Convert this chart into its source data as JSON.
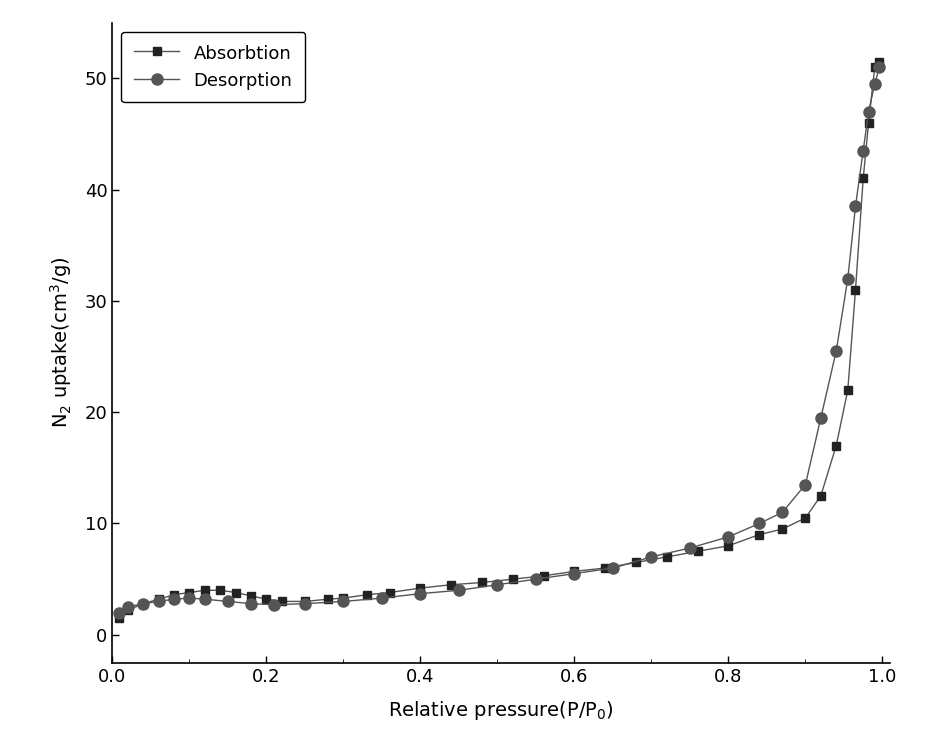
{
  "absorption_x": [
    0.008,
    0.02,
    0.04,
    0.06,
    0.08,
    0.1,
    0.12,
    0.14,
    0.16,
    0.18,
    0.2,
    0.22,
    0.25,
    0.28,
    0.3,
    0.33,
    0.36,
    0.4,
    0.44,
    0.48,
    0.52,
    0.56,
    0.6,
    0.64,
    0.68,
    0.72,
    0.76,
    0.8,
    0.84,
    0.87,
    0.9,
    0.92,
    0.94,
    0.955,
    0.965,
    0.975,
    0.982,
    0.99,
    0.996
  ],
  "absorption_y": [
    1.5,
    2.2,
    2.8,
    3.2,
    3.6,
    3.8,
    4.0,
    4.0,
    3.8,
    3.5,
    3.2,
    3.0,
    3.0,
    3.2,
    3.3,
    3.6,
    3.8,
    4.2,
    4.5,
    4.7,
    5.0,
    5.3,
    5.7,
    6.0,
    6.5,
    7.0,
    7.5,
    8.0,
    9.0,
    9.5,
    10.5,
    12.5,
    17.0,
    22.0,
    31.0,
    41.0,
    46.0,
    51.0,
    51.5
  ],
  "desorption_x": [
    0.008,
    0.02,
    0.04,
    0.06,
    0.08,
    0.1,
    0.12,
    0.15,
    0.18,
    0.21,
    0.25,
    0.3,
    0.35,
    0.4,
    0.45,
    0.5,
    0.55,
    0.6,
    0.65,
    0.7,
    0.75,
    0.8,
    0.84,
    0.87,
    0.9,
    0.92,
    0.94,
    0.955,
    0.965,
    0.975,
    0.982,
    0.99,
    0.996
  ],
  "desorption_y": [
    2.0,
    2.5,
    2.8,
    3.0,
    3.2,
    3.3,
    3.2,
    3.0,
    2.8,
    2.7,
    2.8,
    3.0,
    3.3,
    3.7,
    4.0,
    4.5,
    5.0,
    5.5,
    6.0,
    7.0,
    7.8,
    8.8,
    10.0,
    11.0,
    13.5,
    19.5,
    25.5,
    32.0,
    38.5,
    43.5,
    47.0,
    49.5,
    51.0
  ],
  "xlabel": "Relative pressure(P/P$_0$)",
  "ylabel": "N$_2$ uptake(cm$^3$/g)",
  "xlim": [
    0.0,
    1.01
  ],
  "ylim": [
    -2.5,
    55
  ],
  "xticks": [
    0.0,
    0.2,
    0.4,
    0.6,
    0.8,
    1.0
  ],
  "yticks": [
    0,
    10,
    20,
    30,
    40,
    50
  ],
  "absorption_label": "Absorbtion",
  "desorption_label": "Desorption",
  "line_color": "#555555",
  "marker_color_abs": "#222222",
  "marker_color_des": "#555555",
  "background_color": "#ffffff",
  "fontsize_label": 14,
  "fontsize_tick": 13,
  "fontsize_legend": 13
}
